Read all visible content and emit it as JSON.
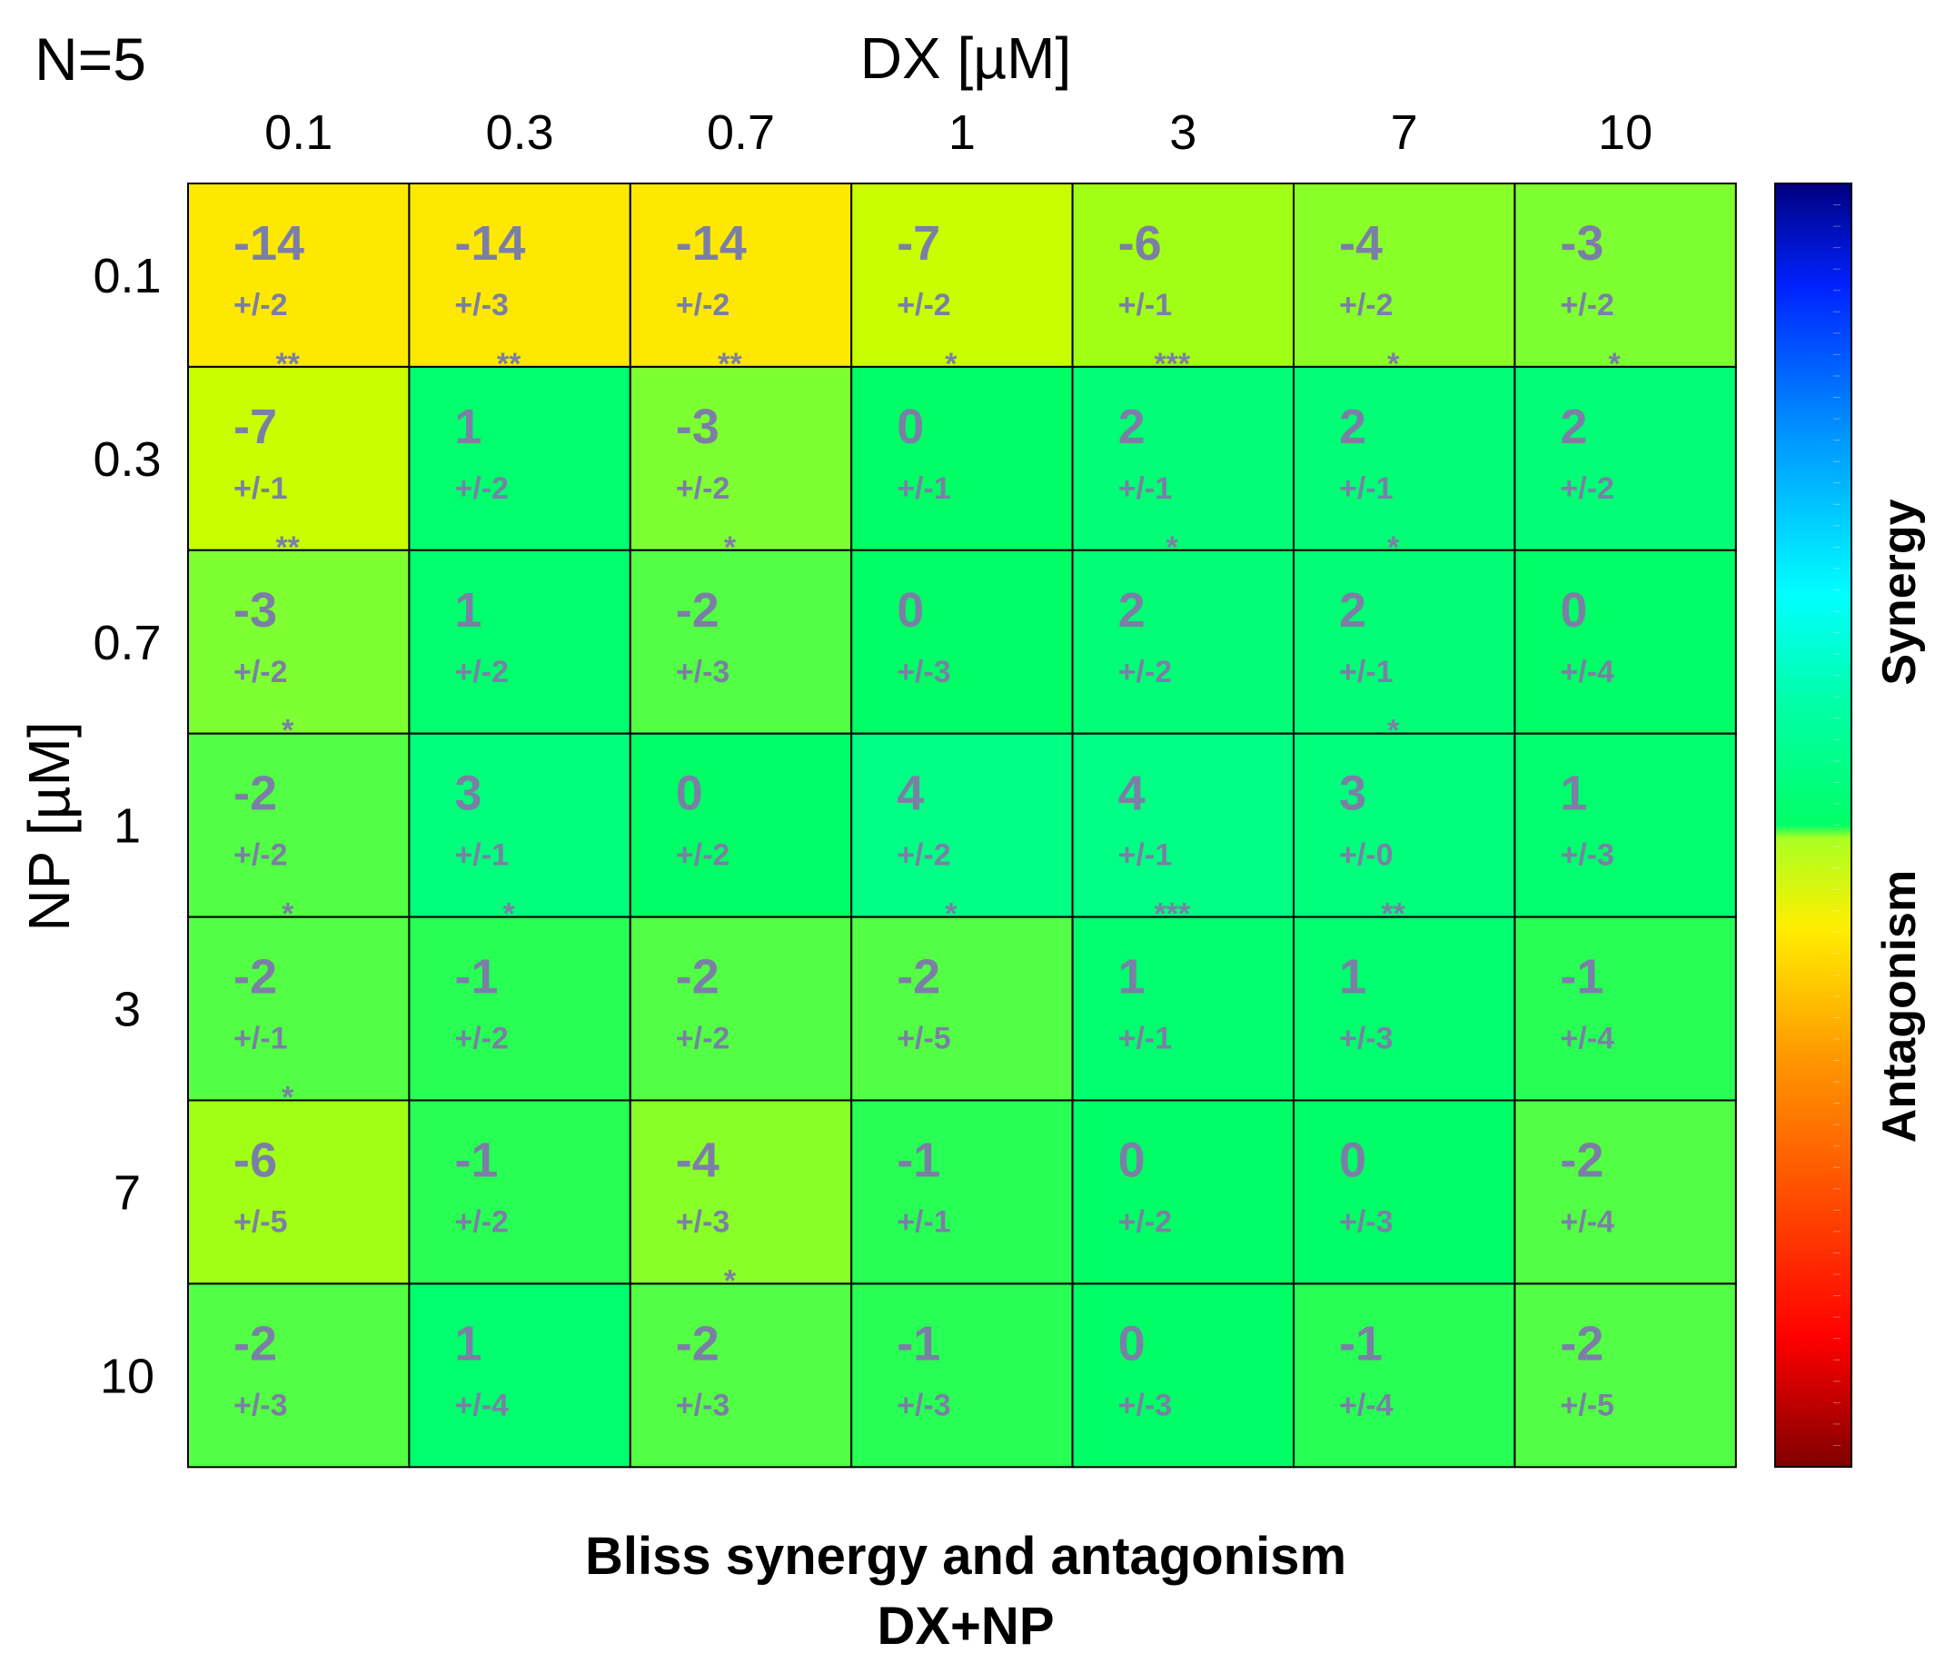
{
  "chart_data": {
    "type": "heatmap",
    "n_label": "N=5",
    "x_title": "DX [µM]",
    "y_title": "NP [µM]",
    "x_ticks": [
      "0.1",
      "0.3",
      "0.7",
      "1",
      "3",
      "7",
      "10"
    ],
    "y_ticks": [
      "0.1",
      "0.3",
      "0.7",
      "1",
      "3",
      "7",
      "10"
    ],
    "values": [
      [
        -14,
        -14,
        -14,
        -7,
        -6,
        -4,
        -3
      ],
      [
        -7,
        1,
        -3,
        0,
        2,
        2,
        2
      ],
      [
        -3,
        1,
        -2,
        0,
        2,
        2,
        0
      ],
      [
        -2,
        3,
        0,
        4,
        4,
        3,
        1
      ],
      [
        -2,
        -1,
        -2,
        -2,
        1,
        1,
        -1
      ],
      [
        -6,
        -1,
        -4,
        -1,
        0,
        0,
        -2
      ],
      [
        -2,
        1,
        -2,
        -1,
        0,
        -1,
        -2
      ]
    ],
    "errors": [
      [
        "+/-2",
        "+/-3",
        "+/-2",
        "+/-2",
        "+/-1",
        "+/-2",
        "+/-2"
      ],
      [
        "+/-1",
        "+/-2",
        "+/-2",
        "+/-1",
        "+/-1",
        "+/-1",
        "+/-2"
      ],
      [
        "+/-2",
        "+/-2",
        "+/-3",
        "+/-3",
        "+/-2",
        "+/-1",
        "+/-4"
      ],
      [
        "+/-2",
        "+/-1",
        "+/-2",
        "+/-2",
        "+/-1",
        "+/-0",
        "+/-3"
      ],
      [
        "+/-1",
        "+/-2",
        "+/-2",
        "+/-5",
        "+/-1",
        "+/-3",
        "+/-4"
      ],
      [
        "+/-5",
        "+/-2",
        "+/-3",
        "+/-1",
        "+/-2",
        "+/-3",
        "+/-4"
      ],
      [
        "+/-3",
        "+/-4",
        "+/-3",
        "+/-3",
        "+/-3",
        "+/-4",
        "+/-5"
      ]
    ],
    "significance": [
      [
        "**",
        "**",
        "**",
        "*",
        "***",
        "*",
        "*"
      ],
      [
        "**",
        "",
        "*",
        "",
        "*",
        "*",
        ""
      ],
      [
        "*",
        "",
        "",
        "",
        "",
        "*",
        ""
      ],
      [
        "*",
        "*",
        "",
        "*",
        "***",
        "**",
        ""
      ],
      [
        "*",
        "",
        "",
        "",
        "",
        "",
        ""
      ],
      [
        "",
        "",
        "*",
        "",
        "",
        "",
        ""
      ],
      [
        "",
        "",
        "",
        "",
        "",
        "",
        ""
      ]
    ],
    "colorbar": {
      "synergy_label": "Synergy",
      "antagonism_label": "Antagonism",
      "range": [
        -30,
        30
      ]
    },
    "caption_line1": "Bliss synergy and antagonism",
    "caption_line2": "DX+NP"
  }
}
